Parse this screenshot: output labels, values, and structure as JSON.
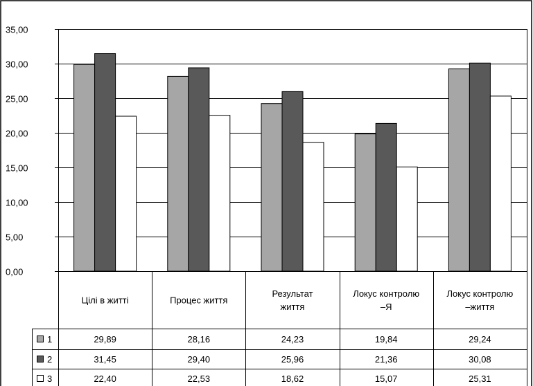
{
  "chart_data": {
    "type": "bar",
    "categories": [
      [
        "Цілі в житті"
      ],
      [
        "Процес життя"
      ],
      [
        "Результат",
        "життя"
      ],
      [
        "Локус контролю",
        "–Я"
      ],
      [
        "Локус контролю",
        "–життя"
      ]
    ],
    "series": [
      {
        "name": "1",
        "values": [
          29.89,
          28.16,
          24.23,
          19.84,
          29.24
        ],
        "labels": [
          "29,89",
          "28,16",
          "24,23",
          "19,84",
          "29,24"
        ]
      },
      {
        "name": "2",
        "values": [
          31.45,
          29.4,
          25.96,
          21.36,
          30.08
        ],
        "labels": [
          "31,45",
          "29,40",
          "25,96",
          "21,36",
          "30,08"
        ]
      },
      {
        "name": "3",
        "values": [
          22.4,
          22.53,
          18.62,
          15.07,
          25.31
        ],
        "labels": [
          "22,40",
          "22,53",
          "18,62",
          "15,07",
          "25,31"
        ]
      }
    ],
    "ylim": [
      0,
      35
    ],
    "yticks": [
      0,
      5,
      10,
      15,
      20,
      25,
      30,
      35
    ],
    "ytick_labels": [
      "0,00",
      "5,00",
      "10,00",
      "15,00",
      "20,00",
      "25,00",
      "30,00",
      "35,00"
    ],
    "grid": true,
    "legend": "data-table",
    "colors": [
      "#a6a6a6",
      "#595959",
      "#ffffff"
    ]
  }
}
